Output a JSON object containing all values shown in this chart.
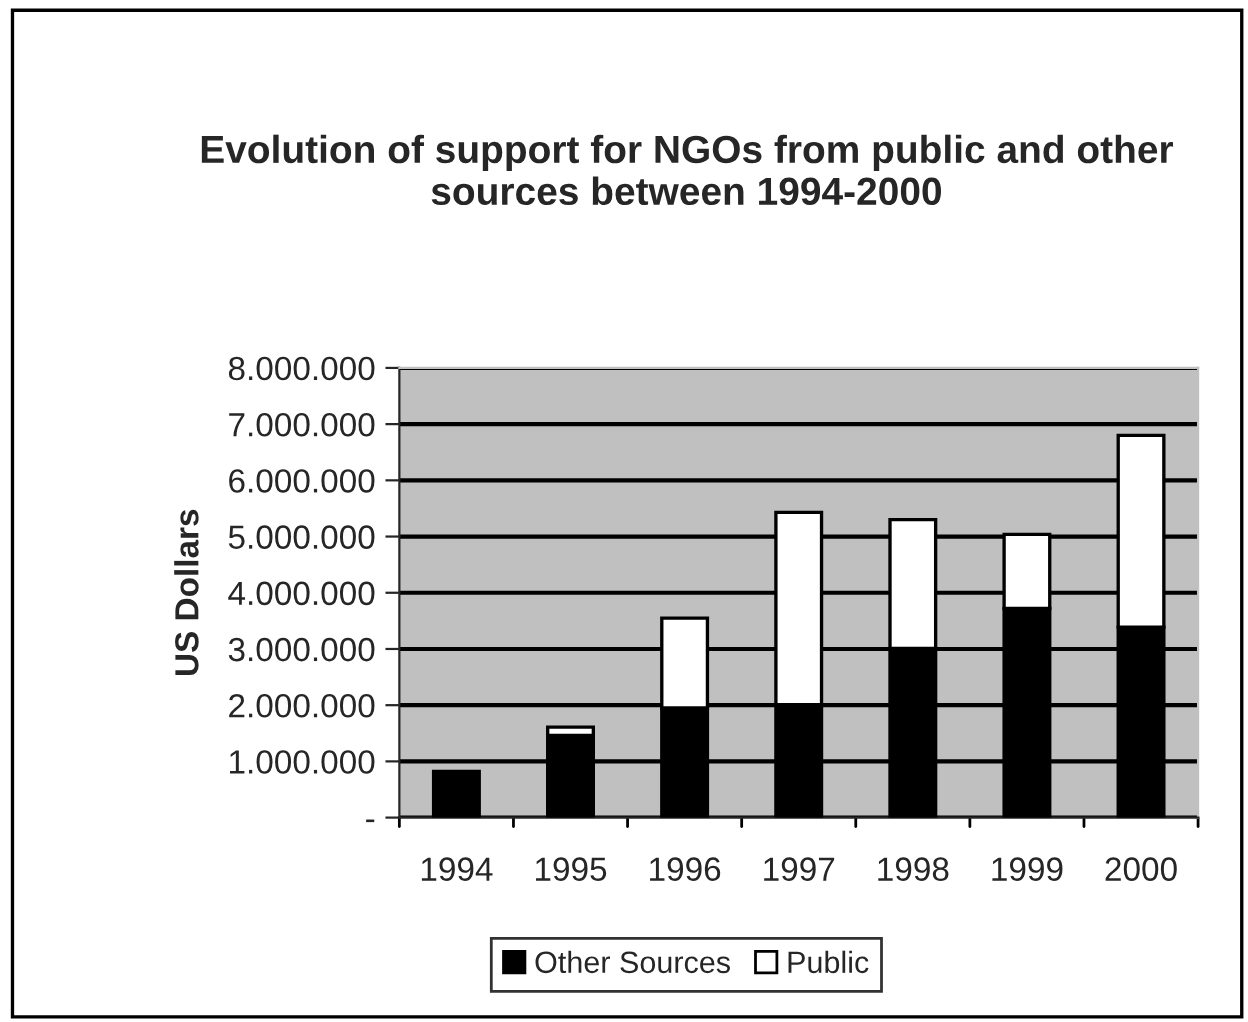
{
  "chart_data": {
    "type": "bar",
    "title": "Evolution of support for NGOs from public and other sources between 1994-2000",
    "ylabel": "US Dollars",
    "categories": [
      "1994",
      "1995",
      "1996",
      "1997",
      "1998",
      "1999",
      "2000"
    ],
    "stacked": true,
    "series": [
      {
        "name": "Other Sources",
        "color": "#000000",
        "values": [
          820000,
          1460000,
          1950000,
          2010000,
          3010000,
          3720000,
          3390000
        ]
      },
      {
        "name": "Public",
        "color": "#ffffff",
        "values": [
          null,
          150000,
          1600000,
          3420000,
          2290000,
          1320000,
          3410000
        ]
      }
    ],
    "ylim": [
      0,
      8000000
    ],
    "yticks": [
      {
        "value": 0,
        "label": "-"
      },
      {
        "value": 1000000,
        "label": "1.000.000"
      },
      {
        "value": 2000000,
        "label": "2.000.000"
      },
      {
        "value": 3000000,
        "label": "3.000.000"
      },
      {
        "value": 4000000,
        "label": "4.000.000"
      },
      {
        "value": 5000000,
        "label": "5.000.000"
      },
      {
        "value": 6000000,
        "label": "6.000.000"
      },
      {
        "value": 7000000,
        "label": "7.000.000"
      },
      {
        "value": 8000000,
        "label": "8.000.000"
      }
    ],
    "grid": "y",
    "legend": "bottom"
  }
}
